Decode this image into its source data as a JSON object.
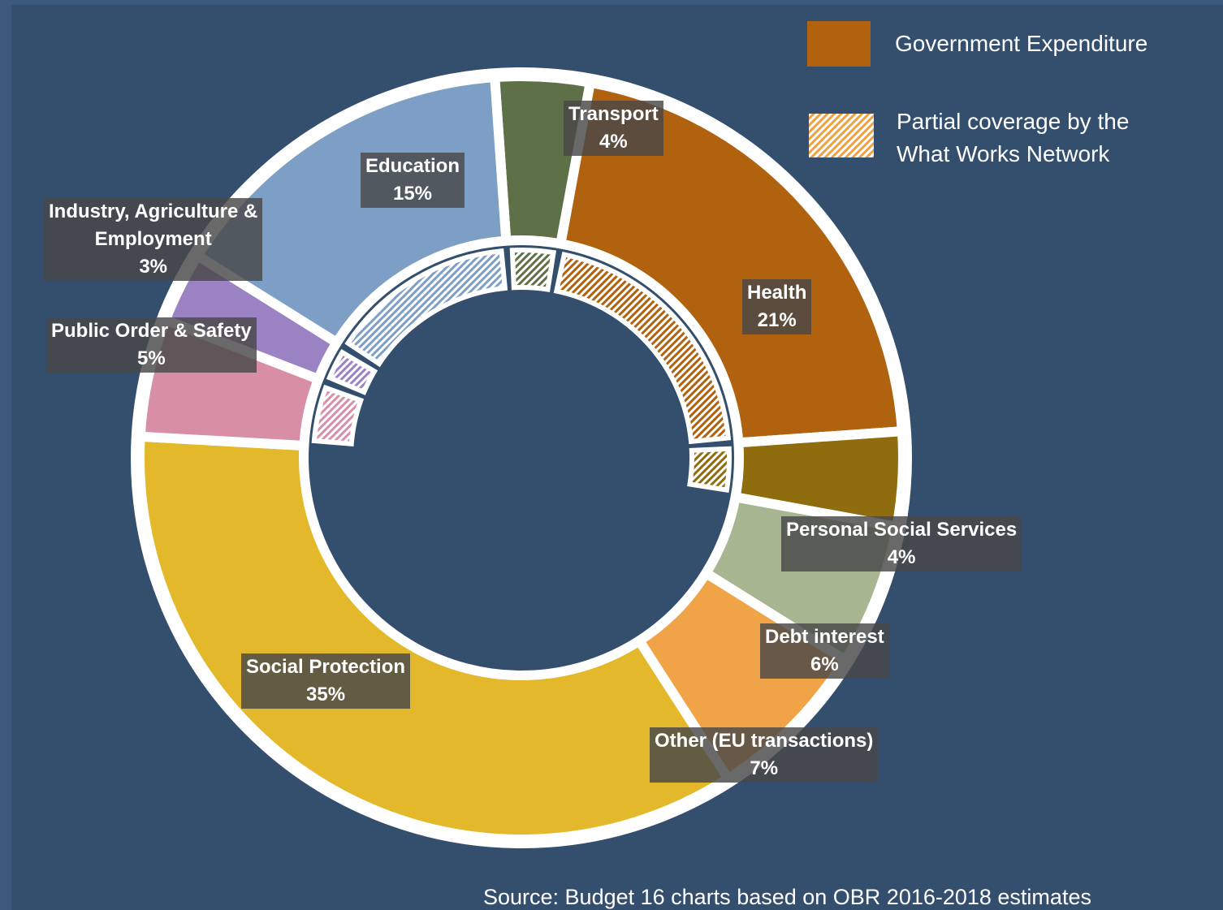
{
  "chart_data": {
    "type": "pie",
    "variant": "donut",
    "title": "",
    "legend": [
      {
        "label": "Government Expenditure",
        "color": "#b0620e",
        "style": "solid"
      },
      {
        "label": "Partial coverage by the What Works Network",
        "color": "#f0a040",
        "style": "hatched"
      }
    ],
    "legend_position": "top-right",
    "slices": [
      {
        "name": "Transport",
        "value": 4,
        "pct_label": "4%",
        "color": "#5e7048",
        "inner_coverage": 0.45,
        "label_lines": [
          "Transport",
          "4%"
        ]
      },
      {
        "name": "Health",
        "value": 21,
        "pct_label": "21%",
        "color": "#b0620e",
        "inner_coverage": 0.85,
        "label_lines": [
          "Health",
          "21%"
        ]
      },
      {
        "name": "Personal Social Services",
        "value": 4,
        "pct_label": "4%",
        "color": "#8f6c0e",
        "inner_coverage": 0.6,
        "label_lines": [
          "Personal Social Services",
          "4%"
        ]
      },
      {
        "name": "Debt interest",
        "value": 6,
        "pct_label": "6%",
        "color": "#a8b591",
        "inner_coverage": 0,
        "label_lines": [
          "Debt interest",
          "6%"
        ]
      },
      {
        "name": "Other (EU transactions)",
        "value": 7,
        "pct_label": "7%",
        "color": "#f0a347",
        "inner_coverage": 0,
        "label_lines": [
          "Other (EU transactions)",
          "7%"
        ]
      },
      {
        "name": "Social Protection",
        "value": 35,
        "pct_label": "35%",
        "color": "#e3b82a",
        "inner_coverage": 0,
        "label_lines": [
          "Social Protection",
          "35%"
        ]
      },
      {
        "name": "Public Order & Safety",
        "value": 5,
        "pct_label": "5%",
        "color": "#d88fa6",
        "inner_coverage": 0.65,
        "label_lines": [
          "Public Order & Safety",
          "5%"
        ]
      },
      {
        "name": "Industry, Agriculture & Employment",
        "value": 3,
        "pct_label": "3%",
        "color": "#9a82c3",
        "inner_coverage": 0.6,
        "label_lines": [
          "Industry, Agriculture &",
          "Employment",
          "3%"
        ]
      },
      {
        "name": "Education",
        "value": 15,
        "pct_label": "15%",
        "color": "#7d9ec5",
        "inner_coverage": 0.55,
        "label_lines": [
          "Education",
          "15%"
        ]
      }
    ],
    "source": "Source: Budget 16 charts based on OBR  2016-2018 estimates"
  }
}
